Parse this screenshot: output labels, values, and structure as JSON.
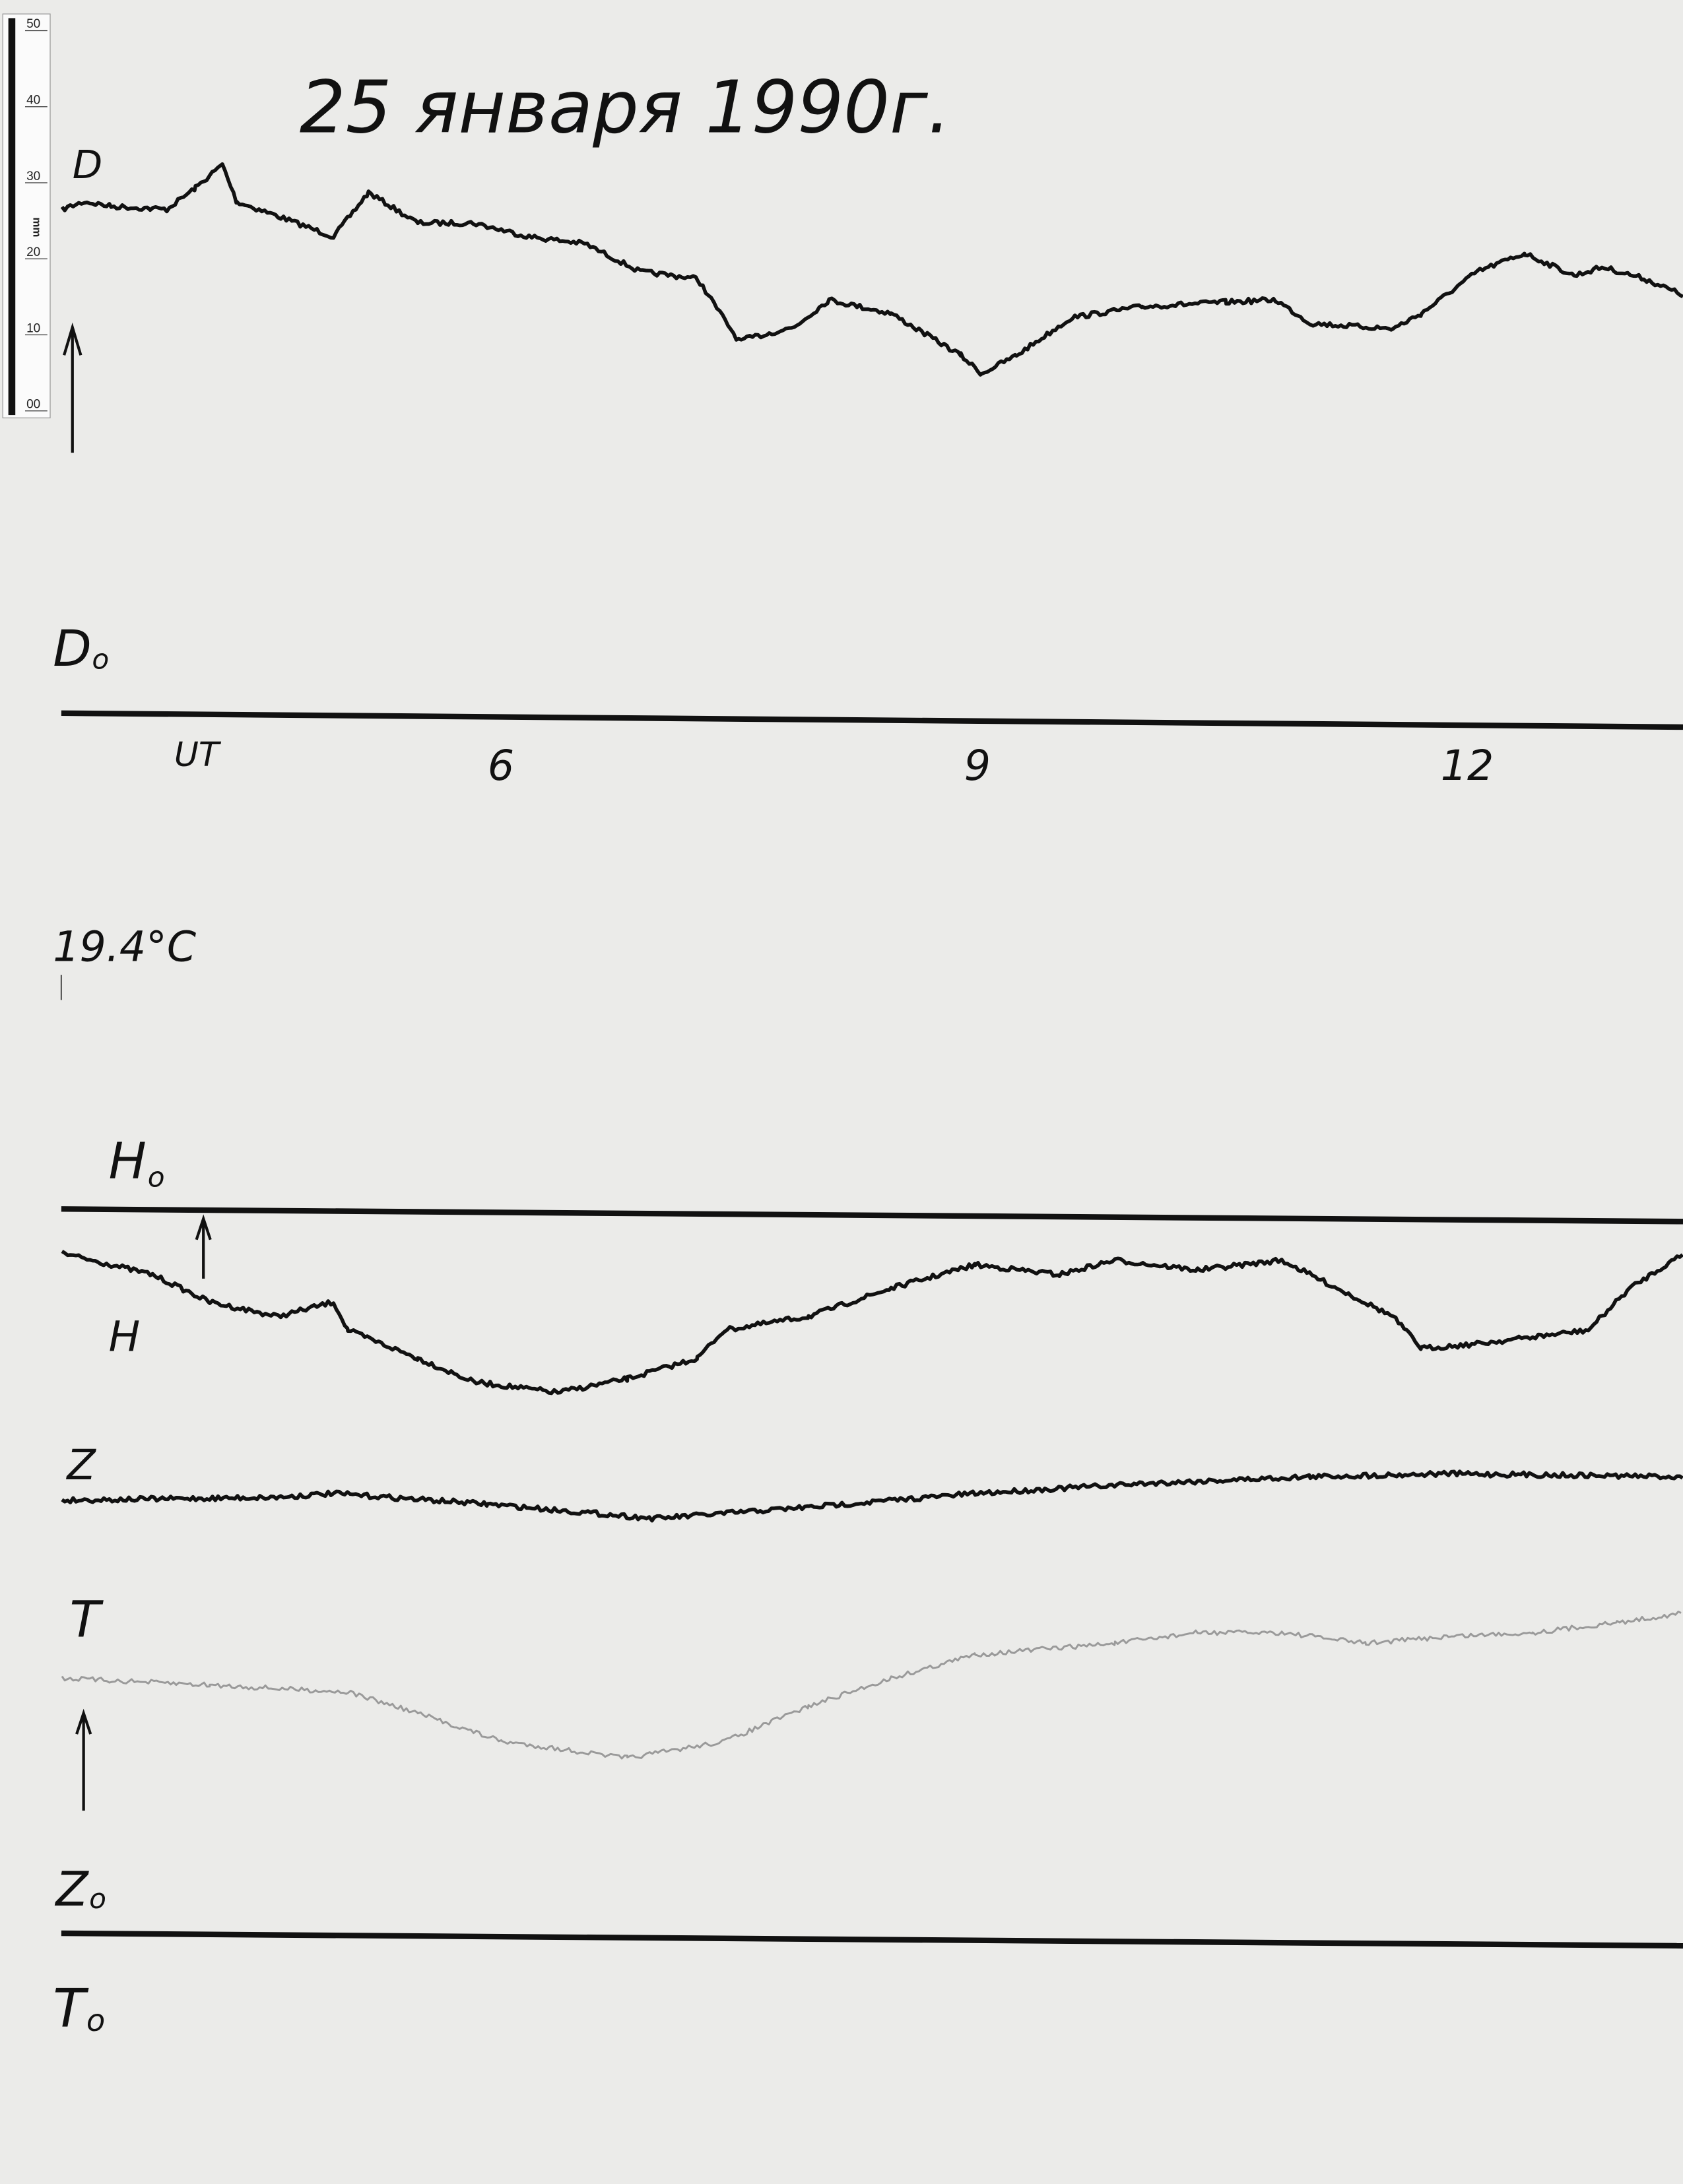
{
  "title": "25 января 1990г.",
  "ruler": {
    "ticks": [
      "50",
      "40",
      "30",
      "20",
      "10",
      "00"
    ],
    "unit": "mm"
  },
  "labels": {
    "D": "D",
    "D0": {
      "text": "D",
      "sub": "o"
    },
    "time_unit": "UT",
    "temperature": "19.4°C",
    "H0": {
      "text": "H",
      "sub": "o"
    },
    "H": "H",
    "Z": "Z",
    "T": "T",
    "Z0": {
      "text": "Z",
      "sub": "o"
    },
    "T0": {
      "text": "T",
      "sub": "o"
    }
  },
  "chart_data": {
    "type": "line",
    "title": "25 января 1990г.",
    "xlabel": "UT",
    "x_ticks": [
      "6",
      "9",
      "12"
    ],
    "x_tick_values": [
      6,
      9,
      12
    ],
    "xlim": [
      3.25,
      13.46
    ],
    "ylabel": "mm",
    "y_ticks": [
      0,
      10,
      20,
      30,
      40,
      50
    ],
    "grid": false,
    "colors": {
      "trace": "#111111",
      "temperature_trace": "#9a9a9a",
      "paper": "#ebebe9"
    },
    "baselines": [
      "D0",
      "H0",
      "Z0"
    ],
    "series": [
      {
        "name": "D",
        "baseline": "D0",
        "x": [
          3.25,
          3.39,
          3.56,
          3.91,
          4.09,
          4.26,
          4.35,
          4.61,
          4.96,
          5.18,
          5.49,
          5.84,
          6.19,
          6.54,
          6.89,
          7.25,
          7.51,
          7.86,
          8.08,
          8.47,
          8.91,
          9.04,
          9.26,
          9.61,
          10.05,
          10.58,
          10.89,
          11.11,
          11.63,
          11.81,
          12.16,
          12.46,
          12.77,
          12.95,
          13.21,
          13.46
        ],
        "y": [
          66.8,
          67.8,
          67.2,
          66.8,
          69.6,
          72.7,
          67.8,
          65.9,
          63.2,
          69.0,
          65.0,
          65.0,
          63.2,
          62.3,
          58.6,
          57.7,
          49.5,
          51.3,
          54.9,
          53.1,
          47.6,
          45.2,
          47.6,
          52.6,
          54.0,
          54.6,
          54.9,
          51.8,
          51.1,
          53.1,
          58.6,
          61.0,
          58.1,
          59.2,
          57.7,
          55.5
        ]
      },
      {
        "name": "H",
        "baseline": "H0",
        "x": [
          3.25,
          3.56,
          3.82,
          4.18,
          4.61,
          4.96,
          5.05,
          5.49,
          5.84,
          6.37,
          6.81,
          7.25,
          7.42,
          7.95,
          8.47,
          9.0,
          9.53,
          9.88,
          10.4,
          10.93,
          11.28,
          11.63,
          11.81,
          12.16,
          12.51,
          12.86,
          13.12,
          13.46
        ],
        "y": [
          -5.1,
          -6.6,
          -7.9,
          -11.5,
          -13.4,
          -11.5,
          -15.2,
          -18.9,
          -22.0,
          -23.4,
          -21.6,
          -18.9,
          -15.2,
          -13.4,
          -9.7,
          -6.6,
          -7.9,
          -6.0,
          -7.3,
          -6.0,
          -9.7,
          -13.4,
          -17.6,
          -17.0,
          -16.1,
          -15.2,
          -9.7,
          -5.1
        ]
      },
      {
        "name": "Z",
        "baseline": "Z0",
        "x": [
          3.25,
          4.61,
          4.96,
          5.93,
          6.98,
          7.95,
          9.0,
          10.05,
          11.11,
          11.98,
          13.46
        ],
        "y": [
          57.3,
          57.7,
          58.2,
          56.8,
          54.9,
          56.4,
          58.2,
          59.5,
          60.4,
          60.8,
          60.4
        ]
      },
      {
        "name": "T",
        "baseline": "Z0",
        "x": [
          3.25,
          4.18,
          5.05,
          5.49,
          6.02,
          6.81,
          7.42,
          7.95,
          8.47,
          9.0,
          9.88,
          10.4,
          10.93,
          11.46,
          11.98,
          12.51,
          13.04,
          13.46
        ],
        "y": [
          33.9,
          33.0,
          32.1,
          29.3,
          25.6,
          23.4,
          25.6,
          30.2,
          33.9,
          37.0,
          38.5,
          39.9,
          39.9,
          38.5,
          39.4,
          39.9,
          41.2,
          42.5
        ]
      }
    ]
  }
}
